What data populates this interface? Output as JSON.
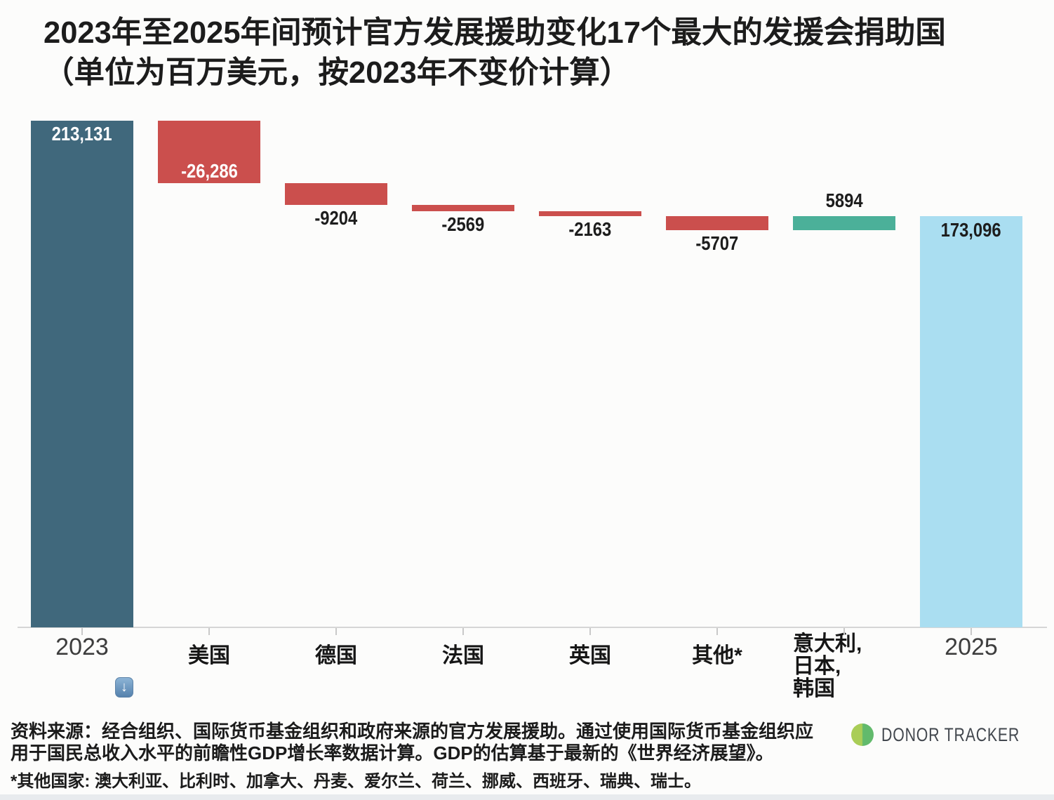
{
  "title": {
    "line1": "2023年至2025年间预计官方发展援助变化17个最大的发援会捐助国",
    "line2": "（单位为百万美元，按2023年不变价计算）"
  },
  "chart_data": {
    "type": "bar",
    "variant": "waterfall",
    "title": "2023年至2025年间预计官方发展援助变化17个最大的发援会捐助国",
    "subtitle": "（单位为百万美元，按2023年不变价计算）",
    "categories": [
      "2023",
      "美国",
      "德国",
      "法国",
      "英国",
      "其他*",
      "意大利,\n日本,\n韩国",
      "2025"
    ],
    "values": [
      213131,
      -26286,
      -9204,
      -2569,
      -2163,
      -5707,
      5894,
      173096
    ],
    "value_labels": [
      "213,131",
      "-26,286",
      "-9204",
      "-2569",
      "-2163",
      "-5707",
      "5894",
      "173,096"
    ],
    "kinds": [
      "start",
      "decrease",
      "decrease",
      "decrease",
      "decrease",
      "decrease",
      "increase",
      "end"
    ],
    "label_placement": [
      "inside-top-light",
      "inside-bottom-light",
      "below",
      "below",
      "below",
      "below",
      "above",
      "inside-top-dark"
    ],
    "colors": {
      "start": "#40687c",
      "decrease": "#cb4f4d",
      "increase": "#4bb099",
      "end": "#aadef1"
    },
    "ylim": [
      0,
      213131
    ],
    "grid": false,
    "legend": false
  },
  "download_icon": {
    "glyph": "↓"
  },
  "footer": {
    "source_line1": "资料来源：经合组织、国际货币基金组织和政府来源的官方发展援助。通过使用国际货币基金组织应",
    "source_line2": "用于国民总收入水平的前瞻性GDP增长率数据计算。GDP的估算基于最新的《世界经济展望》。",
    "footnote": "*其他国家: 澳大利亚、比利时、加拿大、丹麦、爱尔兰、荷兰、挪威、西班牙、瑞典、瑞士。"
  },
  "logo": {
    "text": "DONOR TRACKER",
    "circle_left_color": "#a9cd57",
    "circle_right_color": "#62ba6c"
  }
}
